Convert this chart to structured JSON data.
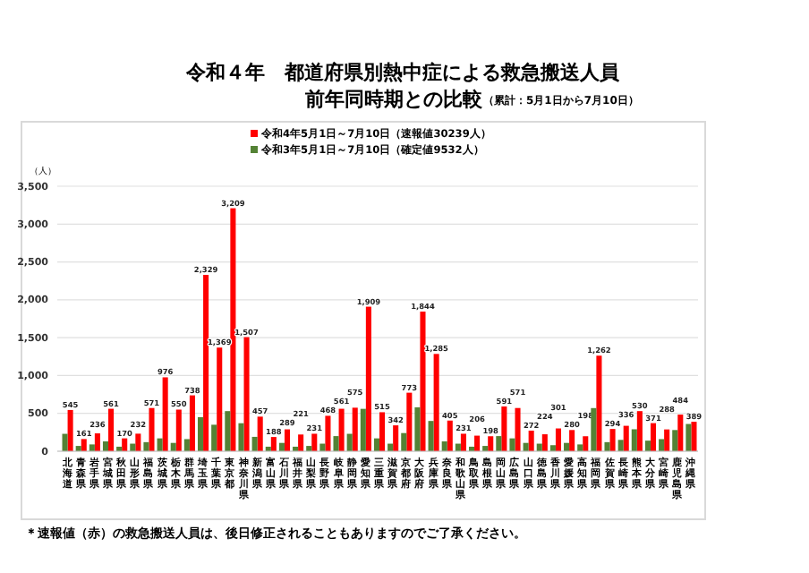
{
  "chart_data": {
    "type": "bar",
    "title": "令和４年　都道府県別熱中症による救急搬送人員",
    "subtitle": "前年同時期との比較",
    "annotations": [
      "（累計：5月1日から7月10日）",
      "＊速報値（赤）の救急搬送人員は、後日修正されることもありますのでご了承ください。"
    ],
    "ylabel": "（人）",
    "categories": [
      "北海道",
      "青森県",
      "岩手県",
      "宮城県",
      "秋田県",
      "山形県",
      "福島県",
      "茨城県",
      "栃木県",
      "群馬県",
      "埼玉県",
      "千葉県",
      "東京都",
      "神奈川県",
      "新潟県",
      "富山県",
      "石川県",
      "福井県",
      "山梨県",
      "長野県",
      "岐阜県",
      "静岡県",
      "愛知県",
      "三重県",
      "滋賀県",
      "京都府",
      "大阪府",
      "兵庫県",
      "奈良県",
      "和歌山県",
      "鳥取県",
      "島根県",
      "岡山県",
      "広島県",
      "山口県",
      "徳島県",
      "香川県",
      "愛媛県",
      "高知県",
      "福岡県",
      "佐賀県",
      "長崎県",
      "熊本県",
      "大分県",
      "宮崎県",
      "鹿児島県",
      "沖縄県"
    ],
    "series": [
      {
        "name": "令和4年5月1日～7月10日（速報値30239人）",
        "color": "#ff0000",
        "values": [
          545,
          161,
          236,
          561,
          170,
          232,
          571,
          976,
          550,
          738,
          2329,
          1369,
          3209,
          1507,
          457,
          188,
          289,
          221,
          231,
          468,
          561,
          575,
          1909,
          515,
          342,
          773,
          1844,
          1285,
          405,
          231,
          206,
          198,
          591,
          571,
          272,
          224,
          301,
          280,
          198,
          1262,
          294,
          336,
          530,
          371,
          288,
          484,
          389
        ],
        "value_labels": [
          "545",
          "161",
          "236",
          "561",
          "170",
          "232",
          "571",
          "976",
          "550",
          "738",
          "2,329",
          "1,369",
          "3,209",
          "1,507",
          "457",
          "188",
          "289",
          "221",
          "231",
          "468",
          "561",
          "575",
          "1,909",
          "515",
          "342",
          "773",
          "1,844",
          "1,285",
          "405",
          "231",
          "206",
          "198",
          "591",
          "571",
          "272",
          "224",
          "301",
          "280",
          "198",
          "1,262",
          "294",
          "336",
          "530",
          "371",
          "288",
          "484",
          "389"
        ]
      },
      {
        "name": "令和3年5月1日～7月10日（確定値9532人）",
        "color": "#548235",
        "values": [
          230,
          70,
          90,
          130,
          60,
          100,
          120,
          170,
          110,
          160,
          450,
          350,
          530,
          370,
          190,
          60,
          110,
          60,
          70,
          100,
          200,
          230,
          560,
          170,
          100,
          240,
          580,
          400,
          130,
          100,
          60,
          70,
          200,
          170,
          110,
          100,
          80,
          110,
          90,
          570,
          120,
          150,
          290,
          140,
          160,
          280,
          360
        ]
      }
    ],
    "ylim": [
      0,
      3500
    ],
    "yticks": [
      0,
      500,
      {
        "value": 1000,
        "label": "1,000"
      },
      {
        "value": 1500,
        "label": "1,500"
      },
      {
        "value": 2000,
        "label": "2,000"
      },
      {
        "value": 2500,
        "label": "2,500"
      },
      {
        "value": 3000,
        "label": "3,000"
      },
      {
        "value": 3500,
        "label": "3,500"
      }
    ],
    "grid": "y",
    "legend": "top"
  }
}
